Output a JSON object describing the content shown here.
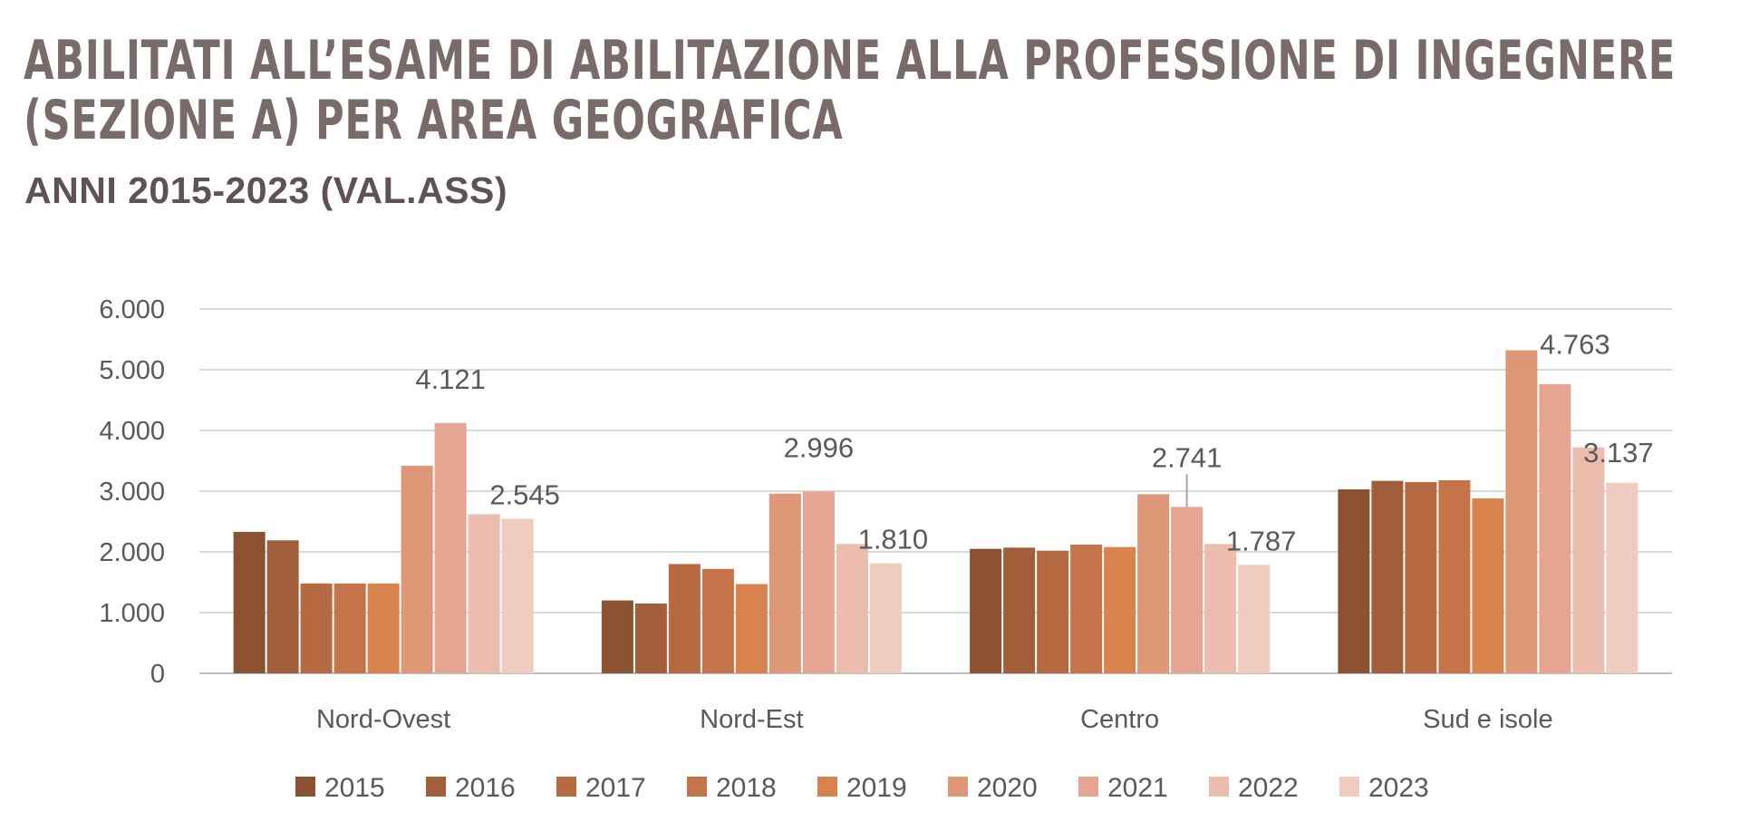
{
  "title_lines": [
    "ABILITATI ALL’ESAME DI ABILITAZIONE ALLA PROFESSIONE DI INGEGNERE",
    "(SEZIONE A) PER AREA GEOGRAFICA"
  ],
  "subtitle": "ANNI 2015-2023 (VAL.ASS)",
  "chart_data": {
    "type": "bar",
    "title": "ABILITATI ALL’ESAME DI ABILITAZIONE ALLA PROFESSIONE DI INGEGNERE (SEZIONE A) PER AREA GEOGRAFICA",
    "subtitle": "ANNI 2015-2023 (VAL.ASS)",
    "xlabel": "",
    "ylabel": "",
    "ylim": [
      0,
      6000
    ],
    "yticks": [
      0,
      1000,
      2000,
      3000,
      4000,
      5000,
      6000
    ],
    "ytick_labels": [
      "0",
      "1.000",
      "2.000",
      "3.000",
      "4.000",
      "5.000",
      "6.000"
    ],
    "grid": true,
    "legend_position": "bottom",
    "categories": [
      "Nord-Ovest",
      "Nord-Est",
      "Centro",
      "Sud e isole"
    ],
    "series": [
      {
        "name": "2015",
        "color": "#8b5232",
        "values": [
          2330,
          1200,
          2050,
          3030
        ]
      },
      {
        "name": "2016",
        "color": "#a05f3a",
        "values": [
          2190,
          1150,
          2070,
          3170
        ]
      },
      {
        "name": "2017",
        "color": "#b56a42",
        "values": [
          1480,
          1800,
          2020,
          3150
        ]
      },
      {
        "name": "2018",
        "color": "#c5744a",
        "values": [
          1480,
          1720,
          2120,
          3180
        ]
      },
      {
        "name": "2019",
        "color": "#d8834e",
        "values": [
          1480,
          1470,
          2080,
          2880
        ]
      },
      {
        "name": "2020",
        "color": "#de9877",
        "values": [
          3420,
          2960,
          2950,
          5320
        ]
      },
      {
        "name": "2021",
        "color": "#e6a592",
        "values": [
          4121,
          2996,
          2741,
          4763
        ]
      },
      {
        "name": "2022",
        "color": "#ecbcae",
        "values": [
          2620,
          2130,
          2130,
          3720
        ]
      },
      {
        "name": "2023",
        "color": "#efcbc0",
        "values": [
          2545,
          1810,
          1787,
          3137
        ]
      }
    ],
    "data_labels": [
      {
        "category": "Nord-Ovest",
        "series": "2021",
        "text": "4.121"
      },
      {
        "category": "Nord-Ovest",
        "series": "2023",
        "text": "2.545"
      },
      {
        "category": "Nord-Est",
        "series": "2021",
        "text": "2.996"
      },
      {
        "category": "Nord-Est",
        "series": "2023",
        "text": "1.810"
      },
      {
        "category": "Centro",
        "series": "2021",
        "text": "2.741"
      },
      {
        "category": "Centro",
        "series": "2023",
        "text": "1.787"
      },
      {
        "category": "Sud e isole",
        "series": "2021",
        "text": "4.763"
      },
      {
        "category": "Sud e isole",
        "series": "2023",
        "text": "3.137"
      }
    ],
    "colors": {
      "grid": "#d9d9d9",
      "axis": "#bfbfbf",
      "tick_text": "#595959",
      "data_label_text": "#595959",
      "leader_line": "#a6a6a6"
    }
  }
}
